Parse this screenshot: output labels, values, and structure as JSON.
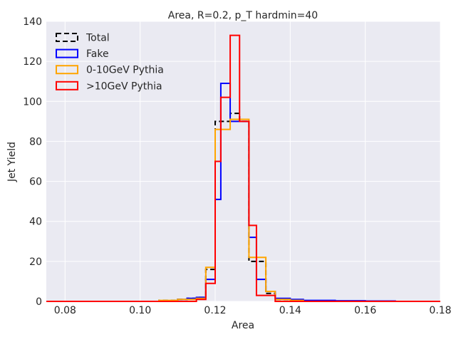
{
  "chart_data": {
    "type": "step-histogram",
    "title": "Area, R=0.2, p_T hardmin=40",
    "xlabel": "Area",
    "ylabel": "Jet Yield",
    "xlim": [
      0.075,
      0.18
    ],
    "ylim": [
      0,
      140
    ],
    "xticks": [
      "0.08",
      "0.10",
      "0.12",
      "0.14",
      "0.16",
      "0.18"
    ],
    "xtick_values": [
      0.08,
      0.1,
      0.12,
      0.14,
      0.16,
      0.18
    ],
    "yticks": [
      "0",
      "20",
      "40",
      "60",
      "80",
      "100",
      "120",
      "140"
    ],
    "ytick_values": [
      0,
      20,
      40,
      60,
      80,
      100,
      120,
      140
    ],
    "grid": true,
    "legend_position": "top-left",
    "background": "#eaeaf2",
    "bin_edges": [
      0.075,
      0.105,
      0.11,
      0.1125,
      0.115,
      0.1175,
      0.12,
      0.1215,
      0.124,
      0.1265,
      0.129,
      0.131,
      0.1335,
      0.136,
      0.14,
      0.1435,
      0.1475,
      0.152,
      0.16,
      0.168,
      0.18
    ],
    "series": [
      {
        "name": "Total",
        "color": "#000000",
        "dashed": true,
        "values": [
          0,
          0.5,
          1,
          1.5,
          2,
          16,
          90,
          90,
          94,
          90,
          20,
          20,
          4,
          1,
          0.5,
          0,
          0,
          0,
          0,
          0
        ]
      },
      {
        "name": "Fake",
        "color": "#0000ff",
        "dashed": false,
        "values": [
          0,
          0,
          1,
          1.5,
          2,
          11,
          51,
          109,
          90,
          90,
          32,
          11,
          5,
          1.5,
          1,
          0.5,
          0.5,
          0.3,
          0.2,
          0
        ]
      },
      {
        "name": "0-10GeV Pythia",
        "color": "#ffa500",
        "dashed": false,
        "values": [
          0,
          0.5,
          1,
          1,
          1.5,
          17,
          86,
          86,
          91,
          91,
          22,
          22,
          5,
          1,
          0.5,
          0,
          0,
          0,
          0,
          0
        ]
      },
      {
        "name": ">10GeV Pythia",
        "color": "#ff0000",
        "dashed": false,
        "values": [
          0,
          0,
          0,
          0,
          1,
          9,
          70,
          102,
          133,
          90,
          38,
          3,
          3,
          0,
          0,
          0,
          0,
          0,
          0,
          0
        ]
      }
    ]
  }
}
